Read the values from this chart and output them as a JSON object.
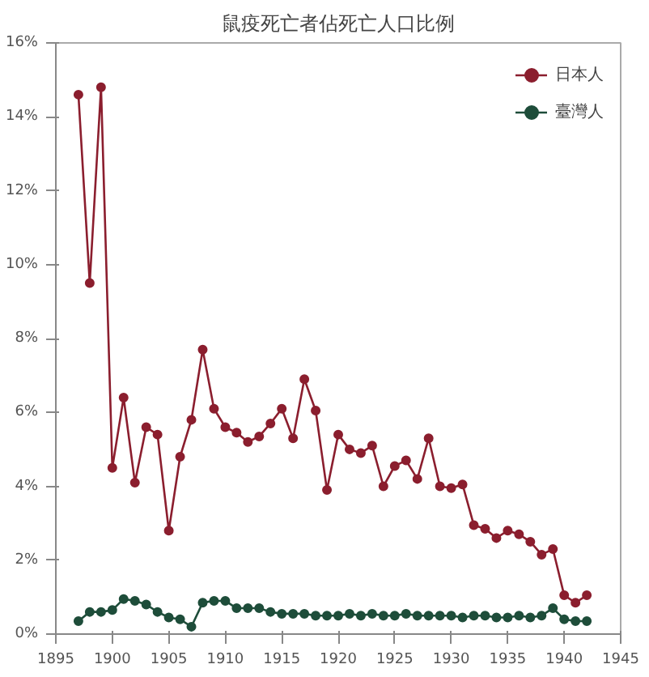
{
  "chart_data": {
    "type": "line",
    "title": "鼠疫死亡者佔死亡人口比例",
    "x": [
      1897,
      1898,
      1899,
      1900,
      1901,
      1902,
      1903,
      1904,
      1905,
      1906,
      1907,
      1908,
      1909,
      1910,
      1911,
      1912,
      1913,
      1914,
      1915,
      1916,
      1917,
      1918,
      1919,
      1920,
      1921,
      1922,
      1923,
      1924,
      1925,
      1926,
      1927,
      1928,
      1929,
      1930,
      1931,
      1932,
      1933,
      1934,
      1935,
      1936,
      1937,
      1938,
      1939,
      1940,
      1941,
      1942
    ],
    "series": [
      {
        "name": "日本人",
        "color": "#8b1e2e",
        "values": [
          14.6,
          9.5,
          14.8,
          4.5,
          6.4,
          4.1,
          5.6,
          5.4,
          2.8,
          4.8,
          5.8,
          7.7,
          6.1,
          5.6,
          5.45,
          5.2,
          5.35,
          5.7,
          6.1,
          5.3,
          6.9,
          6.05,
          3.9,
          5.4,
          5.0,
          4.9,
          5.1,
          4.0,
          4.55,
          4.7,
          4.2,
          5.3,
          4.0,
          3.95,
          4.05,
          2.95,
          2.85,
          2.6,
          2.8,
          2.7,
          2.5,
          2.15,
          2.3,
          1.05,
          0.85,
          1.05
        ]
      },
      {
        "name": "臺灣人",
        "color": "#1e4d3a",
        "values": [
          0.35,
          0.6,
          0.6,
          0.65,
          0.95,
          0.9,
          0.8,
          0.6,
          0.45,
          0.4,
          0.2,
          0.85,
          0.9,
          0.9,
          0.7,
          0.7,
          0.7,
          0.6,
          0.55,
          0.55,
          0.55,
          0.5,
          0.5,
          0.5,
          0.55,
          0.5,
          0.55,
          0.5,
          0.5,
          0.55,
          0.5,
          0.5,
          0.5,
          0.5,
          0.45,
          0.5,
          0.5,
          0.45,
          0.45,
          0.5,
          0.45,
          0.5,
          0.7,
          0.4,
          0.35,
          0.35
        ]
      }
    ],
    "xlim": [
      1895,
      1945
    ],
    "xticks": [
      1895,
      1900,
      1905,
      1910,
      1915,
      1920,
      1925,
      1930,
      1935,
      1940,
      1945
    ],
    "ylim": [
      0,
      16
    ],
    "yticks": [
      {
        "value": 0,
        "label": "0%"
      },
      {
        "value": 2,
        "label": "2%"
      },
      {
        "value": 4,
        "label": "4%"
      },
      {
        "value": 6,
        "label": "6%"
      },
      {
        "value": 8,
        "label": "8%"
      },
      {
        "value": 10,
        "label": "10%"
      },
      {
        "value": 12,
        "label": "12%"
      },
      {
        "value": 14,
        "label": "14%"
      },
      {
        "value": 16,
        "label": "16%"
      }
    ],
    "grid": false,
    "legend": "top right",
    "marker": "circle",
    "line_style": "solid"
  }
}
